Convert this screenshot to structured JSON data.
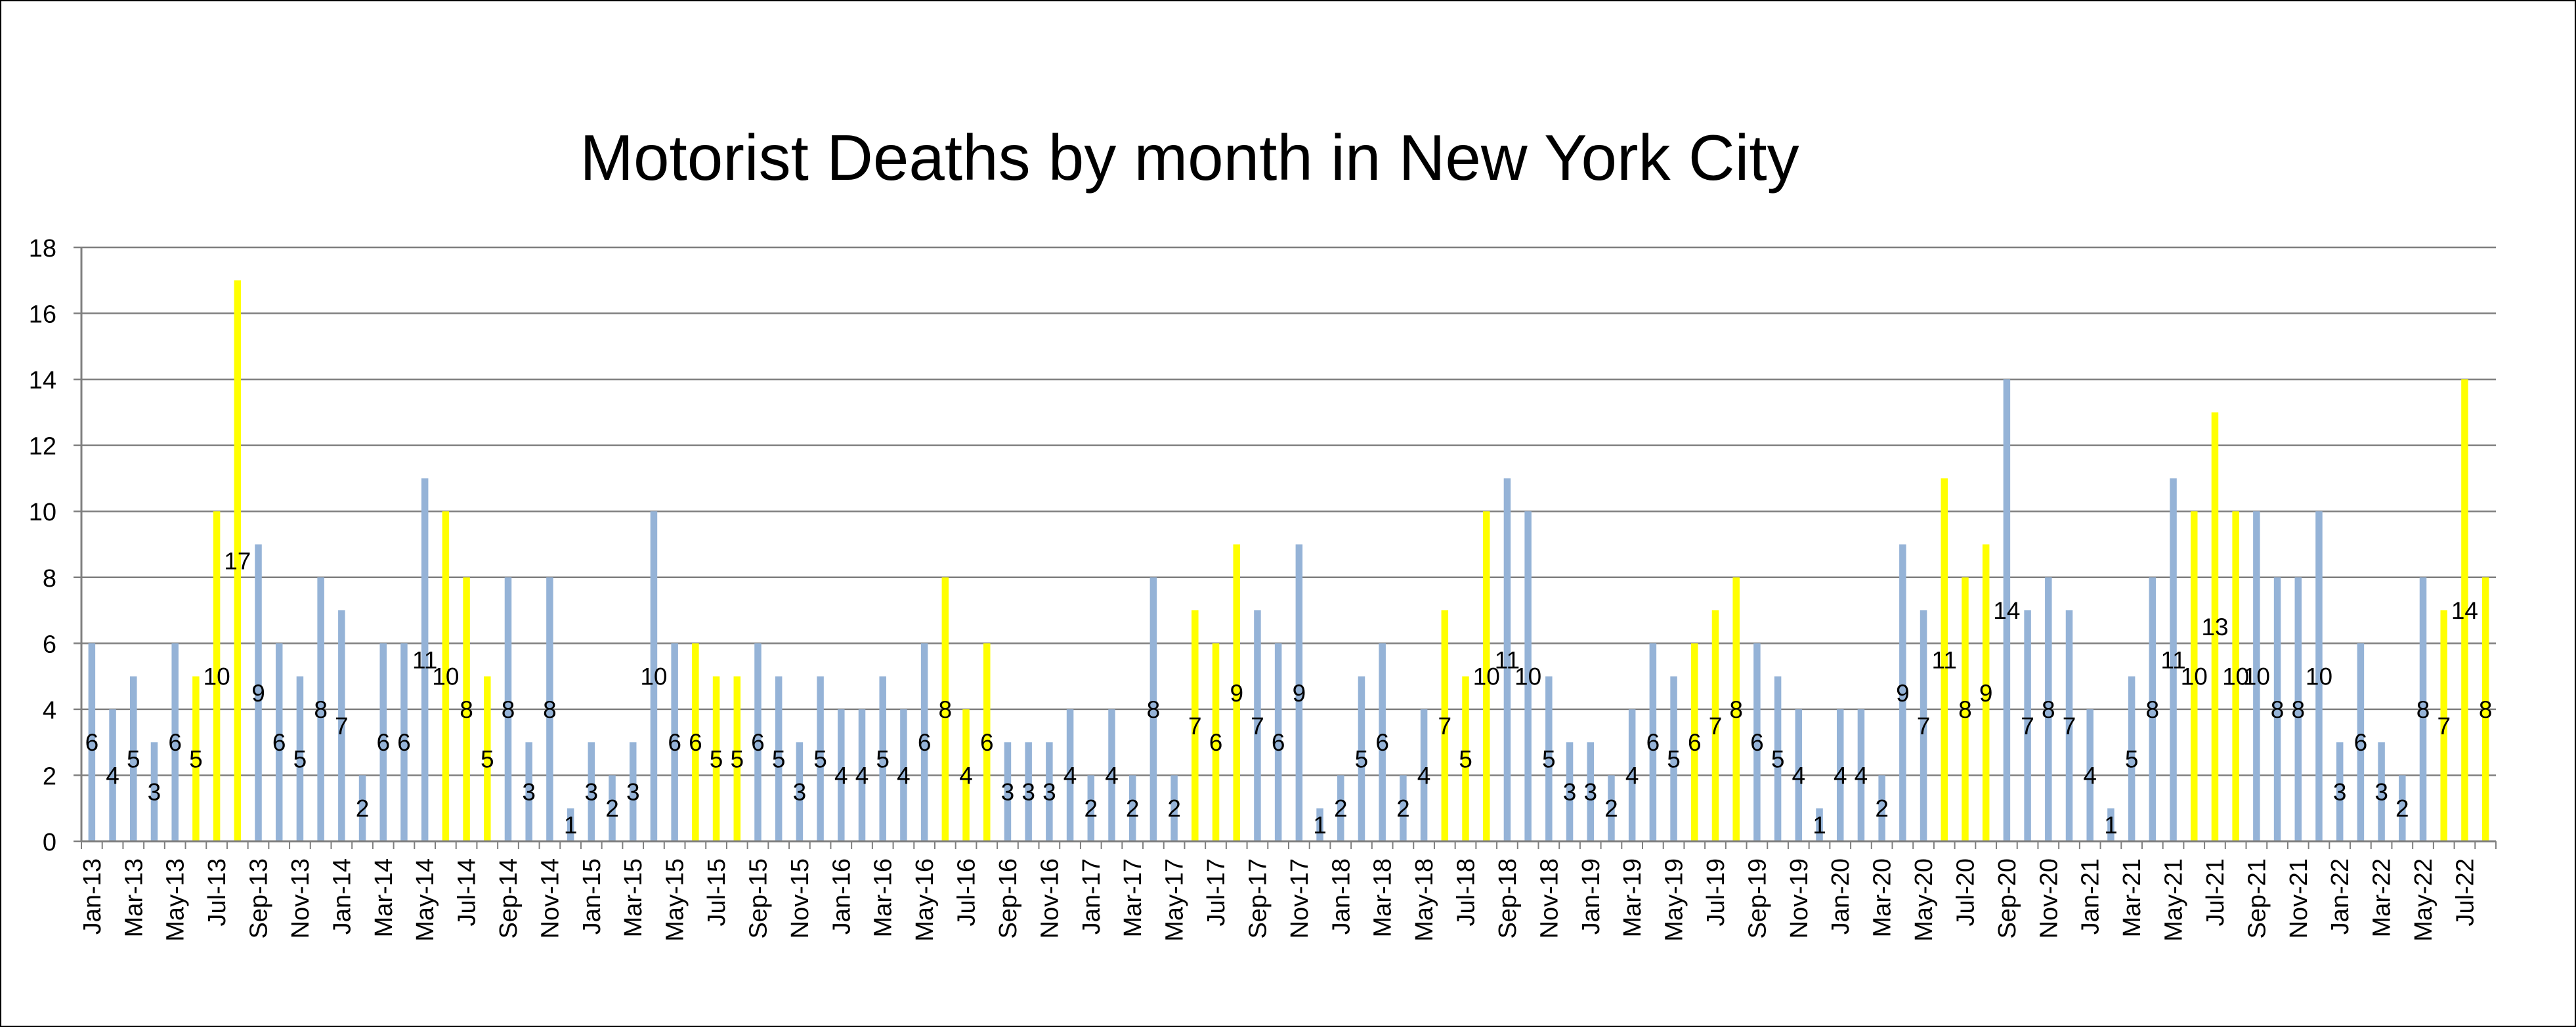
{
  "chart_data": {
    "type": "bar",
    "title": "Motorist Deaths by month in New York City",
    "xlabel": "",
    "ylabel": "",
    "ylim": [
      0,
      18
    ],
    "yticks": [
      "0",
      "2",
      "4",
      "6",
      "8",
      "10",
      "12",
      "14",
      "16",
      "18"
    ],
    "grid": true,
    "legend": "none",
    "colors": {
      "default": "#95B3D7",
      "highlight": "#FFFF00",
      "grid": "#7F7F7F",
      "axis": "#7F7F7F"
    },
    "highlight_months": [
      "Jun",
      "Jul",
      "Aug"
    ],
    "categories": [
      "Jan-13",
      "Feb-13",
      "Mar-13",
      "Apr-13",
      "May-13",
      "Jun-13",
      "Jul-13",
      "Aug-13",
      "Sep-13",
      "Oct-13",
      "Nov-13",
      "Dec-13",
      "Jan-14",
      "Feb-14",
      "Mar-14",
      "Apr-14",
      "May-14",
      "Jun-14",
      "Jul-14",
      "Aug-14",
      "Sep-14",
      "Oct-14",
      "Nov-14",
      "Dec-14",
      "Jan-15",
      "Feb-15",
      "Mar-15",
      "Apr-15",
      "May-15",
      "Jun-15",
      "Jul-15",
      "Aug-15",
      "Sep-15",
      "Oct-15",
      "Nov-15",
      "Dec-15",
      "Jan-16",
      "Feb-16",
      "Mar-16",
      "Apr-16",
      "May-16",
      "Jun-16",
      "Jul-16",
      "Aug-16",
      "Sep-16",
      "Oct-16",
      "Nov-16",
      "Dec-16",
      "Jan-17",
      "Feb-17",
      "Mar-17",
      "Apr-17",
      "May-17",
      "Jun-17",
      "Jul-17",
      "Aug-17",
      "Sep-17",
      "Oct-17",
      "Nov-17",
      "Dec-17",
      "Jan-18",
      "Feb-18",
      "Mar-18",
      "Apr-18",
      "May-18",
      "Jun-18",
      "Jul-18",
      "Aug-18",
      "Sep-18",
      "Oct-18",
      "Nov-18",
      "Dec-18",
      "Jan-19",
      "Feb-19",
      "Mar-19",
      "Apr-19",
      "May-19",
      "Jun-19",
      "Jul-19",
      "Aug-19",
      "Sep-19",
      "Oct-19",
      "Nov-19",
      "Dec-19",
      "Jan-20",
      "Feb-20",
      "Mar-20",
      "Apr-20",
      "May-20",
      "Jun-20",
      "Jul-20",
      "Aug-20",
      "Sep-20",
      "Oct-20",
      "Nov-20",
      "Dec-20",
      "Jan-21",
      "Feb-21",
      "Mar-21",
      "Apr-21",
      "May-21",
      "Jun-21",
      "Jul-21",
      "Aug-21",
      "Sep-21",
      "Oct-21",
      "Nov-21",
      "Dec-21",
      "Jan-22",
      "Feb-22",
      "Mar-22",
      "Apr-22",
      "May-22",
      "Jun-22",
      "Jul-22",
      "Aug-22"
    ],
    "values": [
      6,
      4,
      5,
      3,
      6,
      5,
      10,
      17,
      9,
      6,
      5,
      8,
      7,
      2,
      6,
      6,
      11,
      10,
      8,
      5,
      8,
      3,
      8,
      1,
      3,
      2,
      3,
      10,
      6,
      6,
      5,
      5,
      6,
      5,
      3,
      5,
      4,
      4,
      5,
      4,
      6,
      8,
      4,
      6,
      3,
      3,
      3,
      4,
      2,
      4,
      2,
      8,
      2,
      7,
      6,
      9,
      7,
      6,
      9,
      1,
      2,
      5,
      6,
      2,
      4,
      7,
      5,
      10,
      11,
      10,
      5,
      3,
      3,
      2,
      4,
      6,
      5,
      6,
      7,
      8,
      6,
      5,
      4,
      1,
      4,
      4,
      2,
      9,
      7,
      11,
      8,
      9,
      14,
      7,
      8,
      7,
      4,
      1,
      5,
      8,
      11,
      10,
      13,
      10,
      10,
      8,
      8,
      10,
      3,
      6,
      3,
      2,
      8,
      7,
      14,
      8
    ],
    "x_tick_labels": [
      "Jan-13",
      "Mar-13",
      "May-13",
      "Jul-13",
      "Sep-13",
      "Nov-13",
      "Jan-14",
      "Mar-14",
      "May-14",
      "Jul-14",
      "Sep-14",
      "Nov-14",
      "Jan-15",
      "Mar-15",
      "May-15",
      "Jul-15",
      "Sep-15",
      "Nov-15",
      "Jan-16",
      "Mar-16",
      "May-16",
      "Jul-16",
      "Sep-16",
      "Nov-16",
      "Jan-17",
      "Mar-17",
      "May-17",
      "Jul-17",
      "Sep-17",
      "Nov-17",
      "Jan-18",
      "Mar-18",
      "May-18",
      "Jul-18",
      "Sep-18",
      "Nov-18",
      "Jan-19",
      "Mar-19",
      "May-19",
      "Jul-19",
      "Sep-19",
      "Nov-19",
      "Jan-20",
      "Mar-20",
      "May-20",
      "Jul-20",
      "Sep-20",
      "Nov-20",
      "Jan-21",
      "Mar-21",
      "May-21",
      "Jul-21",
      "Sep-21",
      "Nov-21",
      "Jan-22",
      "Mar-22",
      "May-22",
      "Jul-22"
    ]
  }
}
